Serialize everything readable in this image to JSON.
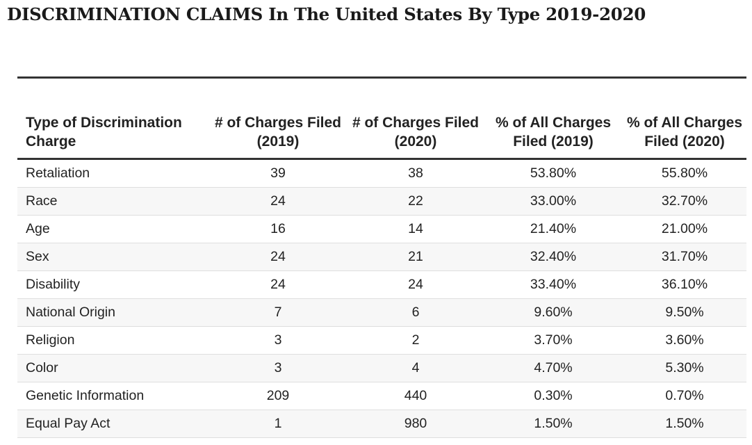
{
  "title": "DISCRIMINATION CLAIMS In The United States By Type 2019-2020",
  "chart_data": {
    "type": "table",
    "title": "DISCRIMINATION CLAIMS In The United States By Type 2019-2020",
    "columns": [
      "Type of Discrimination Charge",
      "# of Charges Filed (2019)",
      "# of Charges Filed (2020)",
      "% of All Charges Filed (2019)",
      "% of All Charges Filed (2020)"
    ],
    "rows": [
      [
        "Retaliation",
        "39",
        "38",
        "53.80%",
        "55.80%"
      ],
      [
        "Race",
        "24",
        "22",
        "33.00%",
        "32.70%"
      ],
      [
        "Age",
        "16",
        "14",
        "21.40%",
        "21.00%"
      ],
      [
        "Sex",
        "24",
        "21",
        "32.40%",
        "31.70%"
      ],
      [
        "Disability",
        "24",
        "24",
        "33.40%",
        "36.10%"
      ],
      [
        "National Origin",
        "7",
        "6",
        "9.60%",
        "9.50%"
      ],
      [
        "Religion",
        "3",
        "2",
        "3.70%",
        "3.60%"
      ],
      [
        "Color",
        "3",
        "4",
        "4.70%",
        "5.30%"
      ],
      [
        "Genetic Information",
        "209",
        "440",
        "0.30%",
        "0.70%"
      ],
      [
        "Equal Pay Act",
        "1",
        "980",
        "1.50%",
        "1.50%"
      ]
    ]
  }
}
